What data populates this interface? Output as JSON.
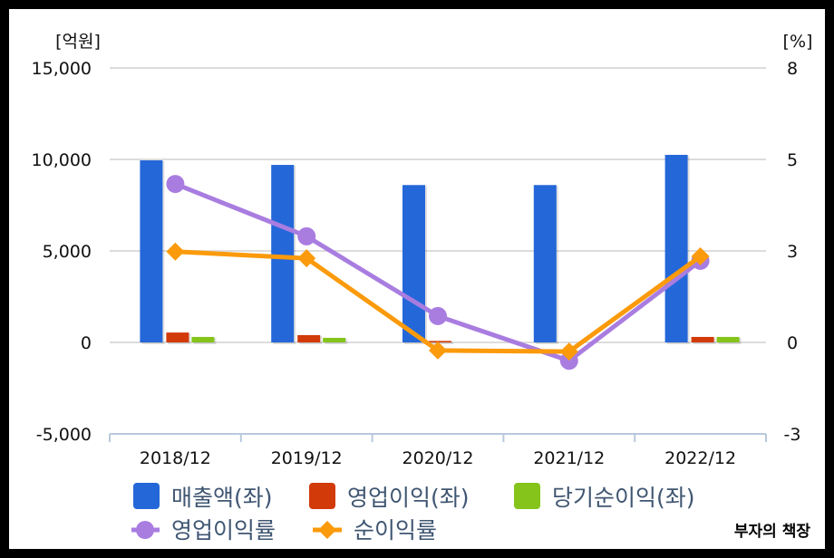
{
  "chart_data": {
    "type": "bar+line",
    "title": "",
    "categories": [
      "2018/12",
      "2019/12",
      "2020/12",
      "2021/12",
      "2022/12"
    ],
    "left_axis": {
      "unit_label": "[억원]",
      "ylim": [
        -5000,
        15000
      ],
      "ticks": [
        15000,
        10000,
        5000,
        0,
        -5000
      ],
      "tick_labels": [
        "15,000",
        "10,000",
        "5,000",
        "0",
        "-5,000"
      ]
    },
    "right_axis": {
      "unit_label": "[%]",
      "ylim": [
        -2.5,
        7.5
      ],
      "ticks": [
        7.5,
        5,
        2.5,
        0,
        -2.5
      ],
      "tick_labels": [
        "8",
        "5",
        "3",
        "0",
        "-3"
      ]
    },
    "grid": true,
    "legend_position": "bottom",
    "series": [
      {
        "name": "매출액(좌)",
        "type": "bar",
        "axis": "left",
        "color": "#2467d9",
        "values": [
          9950,
          9700,
          8600,
          8600,
          10250
        ]
      },
      {
        "name": "영업이익(좌)",
        "type": "bar",
        "axis": "left",
        "color": "#d23a0a",
        "values": [
          540,
          400,
          80,
          -30,
          300
        ]
      },
      {
        "name": "당기순이익(좌)",
        "type": "bar",
        "axis": "left",
        "color": "#84c41b",
        "values": [
          300,
          250,
          -20,
          -20,
          300
        ]
      },
      {
        "name": "영업이익률",
        "type": "line",
        "axis": "right",
        "color": "#a97de0",
        "marker": "circle",
        "values": [
          4.33,
          2.9,
          0.72,
          -0.5,
          2.23
        ]
      },
      {
        "name": "순이익률",
        "type": "line",
        "axis": "right",
        "color": "#fb9a0b",
        "marker": "diamond",
        "values": [
          2.48,
          2.3,
          -0.22,
          -0.25,
          2.35
        ]
      }
    ]
  },
  "watermark": "부자의 책장"
}
